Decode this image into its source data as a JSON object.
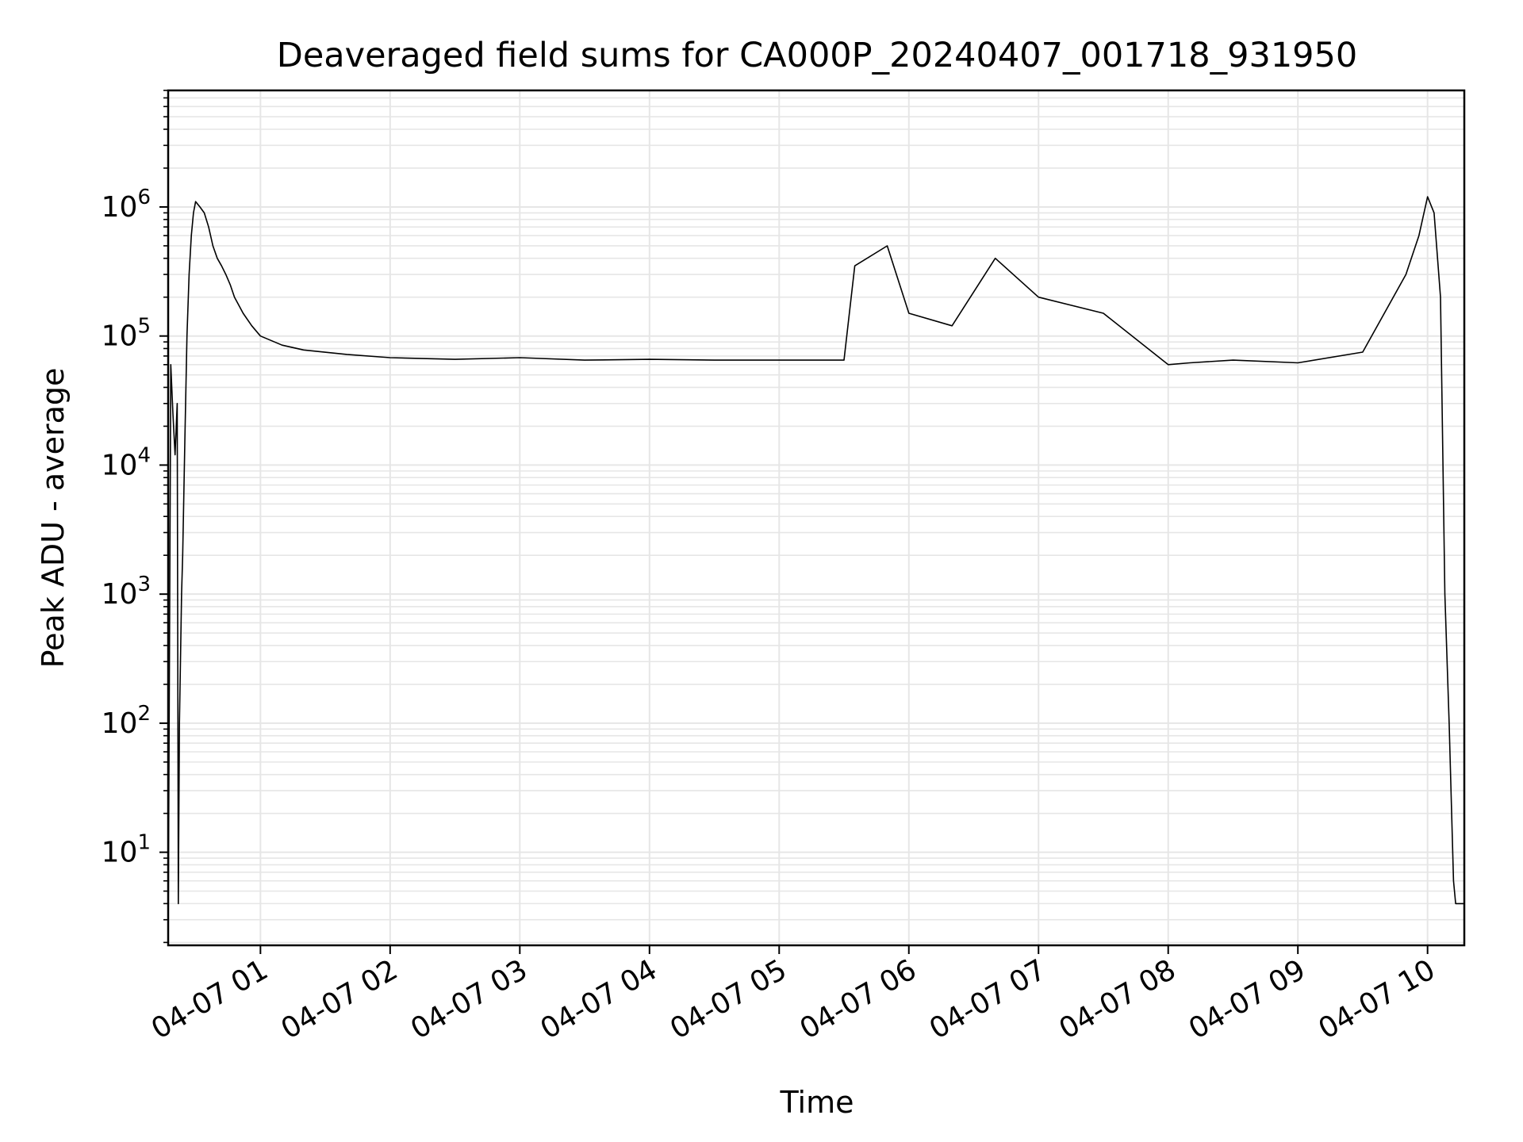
{
  "chart_data": {
    "type": "line",
    "title": "Deaveraged field sums for CA000P_20240407_001718_931950",
    "xlabel": "Time",
    "ylabel": "Peak ADU - average",
    "yscale": "log",
    "ylim": [
      1.9,
      8000000
    ],
    "xlim": [
      "2024-04-07 00:17:18",
      "2024-04-07 10:17:00"
    ],
    "grid": true,
    "line_color": "#000000",
    "grid_color": "#e6e6e6",
    "x_ticks": [
      {
        "value": "2024-04-07 01:00",
        "label": "04-07 01"
      },
      {
        "value": "2024-04-07 02:00",
        "label": "04-07 02"
      },
      {
        "value": "2024-04-07 03:00",
        "label": "04-07 03"
      },
      {
        "value": "2024-04-07 04:00",
        "label": "04-07 04"
      },
      {
        "value": "2024-04-07 05:00",
        "label": "04-07 05"
      },
      {
        "value": "2024-04-07 06:00",
        "label": "04-07 06"
      },
      {
        "value": "2024-04-07 07:00",
        "label": "04-07 07"
      },
      {
        "value": "2024-04-07 08:00",
        "label": "04-07 08"
      },
      {
        "value": "2024-04-07 09:00",
        "label": "04-07 09"
      },
      {
        "value": "2024-04-07 10:00",
        "label": "04-07 10"
      }
    ],
    "y_ticks": [
      {
        "value": 10,
        "base": "10",
        "exp": "1"
      },
      {
        "value": 100,
        "base": "10",
        "exp": "2"
      },
      {
        "value": 1000,
        "base": "10",
        "exp": "3"
      },
      {
        "value": 10000,
        "base": "10",
        "exp": "4"
      },
      {
        "value": 100000,
        "base": "10",
        "exp": "5"
      },
      {
        "value": 1000000,
        "base": "10",
        "exp": "6"
      }
    ],
    "series": [
      {
        "x": [
          "2024-04-07 00:17:18",
          "2024-04-07 00:18:30",
          "2024-04-07 00:19:30",
          "2024-04-07 00:20:30",
          "2024-04-07 00:21:30",
          "2024-04-07 00:22:00",
          "2024-04-07 00:22:30",
          "2024-04-07 00:23:00",
          "2024-04-07 00:23:30",
          "2024-04-07 00:24:00",
          "2024-04-07 00:25:00",
          "2024-04-07 00:26:00",
          "2024-04-07 00:27:00",
          "2024-04-07 00:28:00",
          "2024-04-07 00:29:00",
          "2024-04-07 00:30:00",
          "2024-04-07 00:32:00",
          "2024-04-07 00:34:00",
          "2024-04-07 00:36:00",
          "2024-04-07 00:38:00",
          "2024-04-07 00:40:00",
          "2024-04-07 00:42:00",
          "2024-04-07 00:44:00",
          "2024-04-07 00:46:00",
          "2024-04-07 00:48:00",
          "2024-04-07 00:52:00",
          "2024-04-07 00:56:00",
          "2024-04-07 01:00:00",
          "2024-04-07 01:10:00",
          "2024-04-07 01:20:00",
          "2024-04-07 01:40:00",
          "2024-04-07 02:00:00",
          "2024-04-07 02:30:00",
          "2024-04-07 03:00:00",
          "2024-04-07 03:30:00",
          "2024-04-07 04:00:00",
          "2024-04-07 04:30:00",
          "2024-04-07 05:00:00",
          "2024-04-07 05:30:00",
          "2024-04-07 05:35:00",
          "2024-04-07 05:50:00",
          "2024-04-07 06:00:00",
          "2024-04-07 06:20:00",
          "2024-04-07 06:40:00",
          "2024-04-07 07:00:00",
          "2024-04-07 07:30:00",
          "2024-04-07 08:00:00",
          "2024-04-07 08:10:00",
          "2024-04-07 08:30:00",
          "2024-04-07 09:00:00",
          "2024-04-07 09:30:00",
          "2024-04-07 09:40:00",
          "2024-04-07 09:50:00",
          "2024-04-07 09:56:00",
          "2024-04-07 10:00:00",
          "2024-04-07 10:03:00",
          "2024-04-07 10:06:00",
          "2024-04-07 10:08:00",
          "2024-04-07 10:10:00",
          "2024-04-07 10:12:00",
          "2024-04-07 10:13:00",
          "2024-04-07 10:14:00",
          "2024-04-07 10:15:00",
          "2024-04-07 10:17:00"
        ],
        "values": [
          2,
          60000,
          25000,
          12000,
          30000,
          4,
          100,
          300,
          1000,
          2000,
          15000,
          100000,
          300000,
          600000,
          900000,
          1100000,
          1000000,
          900000,
          700000,
          500000,
          400000,
          350000,
          300000,
          250000,
          200000,
          150000,
          120000,
          100000,
          85000,
          78000,
          72000,
          68000,
          66000,
          68000,
          65000,
          66000,
          65000,
          65000,
          65000,
          350000,
          500000,
          150000,
          120000,
          400000,
          200000,
          150000,
          60000,
          62000,
          65000,
          62000,
          75000,
          150000,
          300000,
          600000,
          1200000,
          900000,
          200000,
          1000,
          100,
          6,
          4,
          4,
          4,
          4
        ]
      }
    ]
  }
}
